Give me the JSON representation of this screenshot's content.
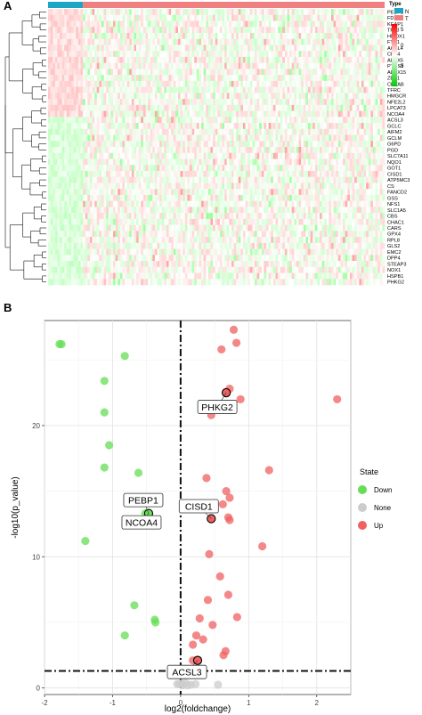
{
  "panel_a": {
    "label": "A",
    "legend_title": "Type",
    "legend_items": [
      {
        "label": "N",
        "color": "#1aa6c4"
      },
      {
        "label": "T",
        "color": "#f08080"
      }
    ],
    "color_scale": {
      "ticks": [
        "5",
        "0",
        "-5"
      ],
      "colors": [
        "#ff0000",
        "#ffffff",
        "#00cc00"
      ]
    }
  },
  "panel_b": {
    "label": "B"
  },
  "chart_data": [
    {
      "type": "heatmap",
      "title": "",
      "column_groups": [
        {
          "name": "N",
          "count": 15
        },
        {
          "name": "T",
          "count": 130
        }
      ],
      "genes": [
        "PEBP1",
        "FDFT1",
        "KEAP1",
        "TP53",
        "HMOX1",
        "FTH1",
        "ACSL4",
        "CD44",
        "ALOX5",
        "PTGS2",
        "ALOX15",
        "ZEB1",
        "CRYAB",
        "TFRC",
        "HMGCR",
        "NFE2L2",
        "LPCAT3",
        "NCOA4",
        "ACSL3",
        "GCLC",
        "AIFM2",
        "GCLM",
        "G6PD",
        "PGD",
        "SLC7A11",
        "NQO1",
        "GOT1",
        "CISD1",
        "ATP5MC3",
        "CS",
        "FANCD2",
        "GSS",
        "NFS1",
        "SLC1A5",
        "CBS",
        "CHAC1",
        "CARS",
        "GPX4",
        "RPL8",
        "GLS2",
        "EMC2",
        "DPP4",
        "STEAP3",
        "NOX1",
        "HSPB1",
        "PHKG2"
      ],
      "color_range": [
        -5,
        5
      ]
    },
    {
      "type": "scatter",
      "title": "",
      "xlabel": "log2(foldchange)",
      "ylabel": "-log10(p_value)",
      "xlim": [
        -2,
        2.5
      ],
      "ylim": [
        -0.5,
        28
      ],
      "xticks": [
        "-2",
        "-1",
        "0",
        "1",
        "2"
      ],
      "yticks": [
        "0",
        "10",
        "20"
      ],
      "grid": true,
      "legend": {
        "title": "State",
        "position": "right"
      },
      "series": [
        {
          "name": "Down",
          "color": "#66dd55",
          "points": [
            [
              -1.78,
              26.2
            ],
            [
              -1.75,
              26.2
            ],
            [
              -0.82,
              25.3
            ],
            [
              -1.12,
              23.4
            ],
            [
              -1.12,
              21.0
            ],
            [
              -1.05,
              18.5
            ],
            [
              -1.12,
              16.8
            ],
            [
              -0.62,
              16.4
            ],
            [
              -1.4,
              11.2
            ],
            [
              -0.52,
              13.3
            ],
            [
              -0.68,
              6.3
            ],
            [
              -0.82,
              4.0
            ],
            [
              -0.38,
              5.2
            ],
            [
              -0.37,
              5.0
            ]
          ]
        },
        {
          "name": "None",
          "color": "#cccccc",
          "points": [
            [
              -0.05,
              0.3
            ],
            [
              0.02,
              0.35
            ],
            [
              0.07,
              0.4
            ],
            [
              0.15,
              0.25
            ],
            [
              0.22,
              0.3
            ],
            [
              0.03,
              0.2
            ],
            [
              -0.02,
              0.3
            ],
            [
              0.1,
              0.2
            ],
            [
              0.55,
              0.25
            ]
          ]
        },
        {
          "name": "Up",
          "color": "#f06060",
          "points": [
            [
              0.78,
              27.3
            ],
            [
              0.82,
              26.3
            ],
            [
              0.6,
              25.8
            ],
            [
              0.72,
              22.8
            ],
            [
              0.88,
              22.0
            ],
            [
              2.3,
              22.0
            ],
            [
              0.45,
              20.8
            ],
            [
              0.38,
              16.0
            ],
            [
              1.3,
              16.6
            ],
            [
              0.67,
              15.0
            ],
            [
              0.72,
              14.5
            ],
            [
              0.62,
              14.0
            ],
            [
              0.7,
              13.0
            ],
            [
              0.72,
              12.8
            ],
            [
              1.2,
              10.8
            ],
            [
              0.42,
              10.2
            ],
            [
              0.58,
              8.5
            ],
            [
              0.4,
              6.7
            ],
            [
              0.7,
              7.1
            ],
            [
              0.47,
              4.8
            ],
            [
              0.28,
              5.3
            ],
            [
              0.23,
              4.0
            ],
            [
              0.33,
              3.7
            ],
            [
              0.83,
              5.4
            ],
            [
              0.18,
              3.3
            ],
            [
              0.66,
              2.8
            ],
            [
              0.63,
              2.5
            ],
            [
              0.18,
              2.1
            ],
            [
              0.25,
              2.1
            ]
          ]
        }
      ],
      "labeled_points": [
        {
          "gene": "PHKG2",
          "x": 0.67,
          "y": 22.5
        },
        {
          "gene": "CISD1",
          "x": 0.45,
          "y": 12.9
        },
        {
          "gene": "PEBP1",
          "x": -0.47,
          "y": 13.3
        },
        {
          "gene": "NCOA4",
          "x": -0.47,
          "y": 13.3
        },
        {
          "gene": "ACSL3",
          "x": 0.25,
          "y": 2.1
        }
      ],
      "reference_lines": {
        "vertical_x": 0,
        "horizontal_y": 1.3
      }
    }
  ]
}
